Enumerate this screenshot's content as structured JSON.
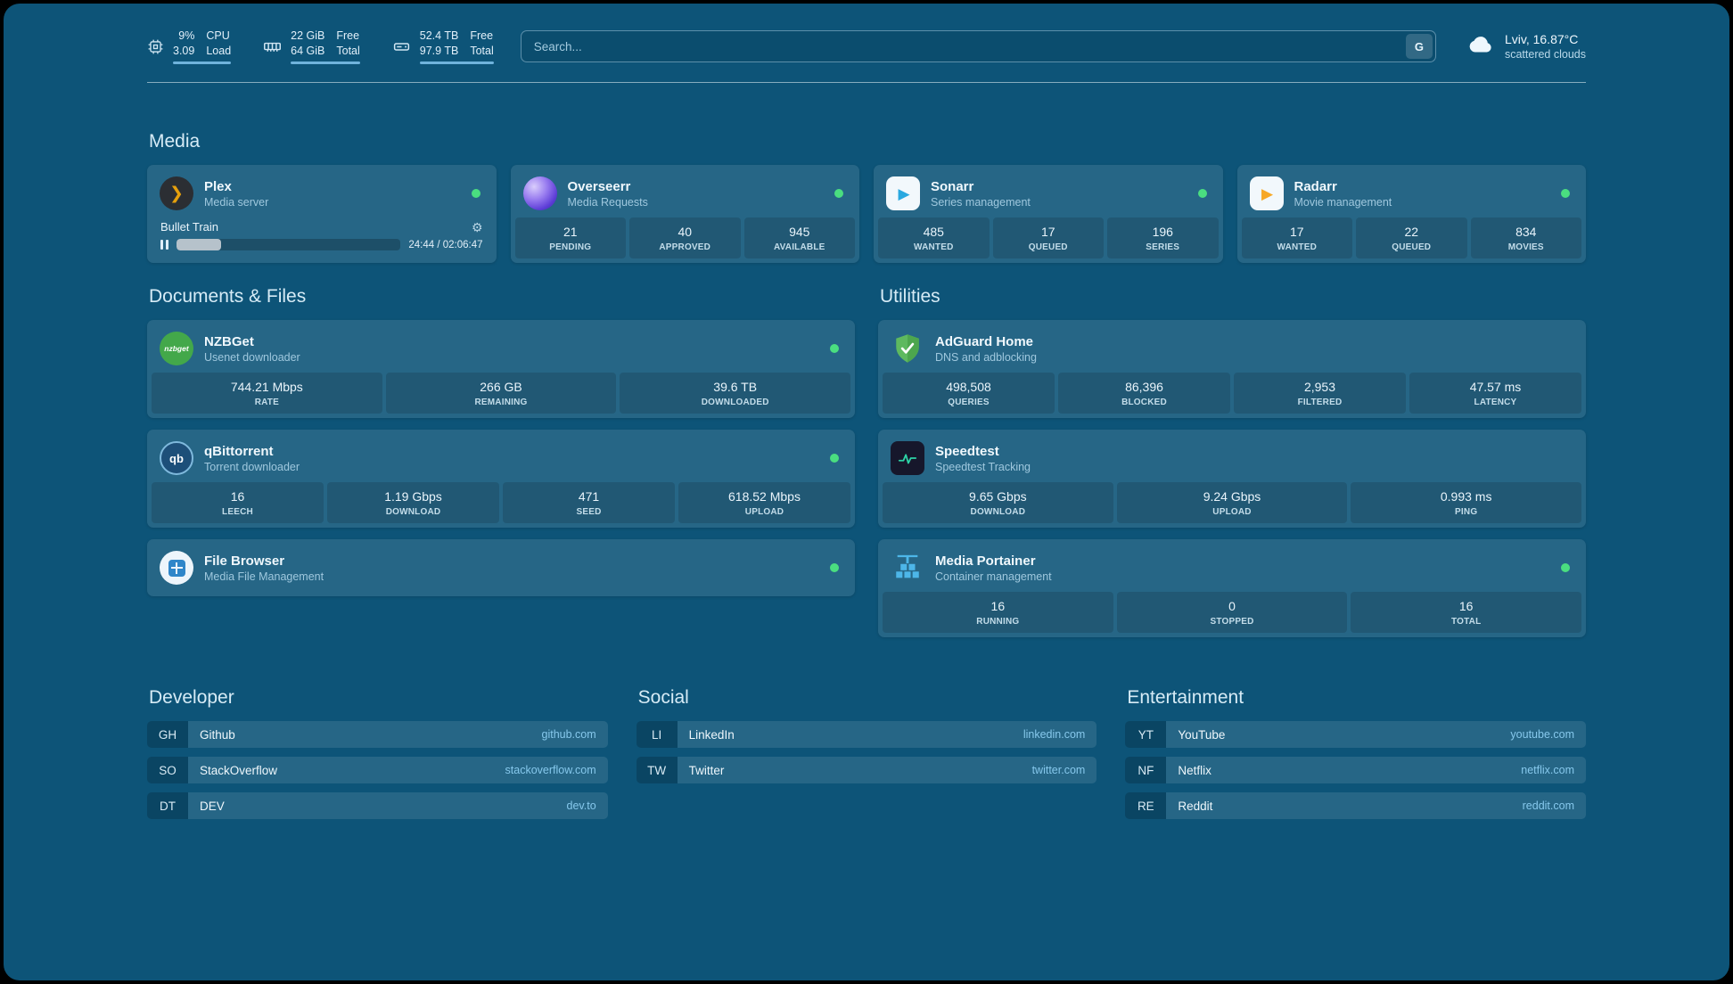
{
  "colors": {
    "background": "#0d5478",
    "status_online": "#4ade80",
    "link": "#86c8ec",
    "accent_bar": "#6fb3dc"
  },
  "icons": {
    "plex_glyph": "❯",
    "play_glyph": "▶",
    "qb_label": "qb",
    "nzbget_label": "nzbget",
    "gear_glyph": "⚙"
  },
  "topbar": {
    "cpu": {
      "v1": "9%",
      "v2": "3.09",
      "l1": "CPU",
      "l2": "Load"
    },
    "mem": {
      "v1": "22 GiB",
      "v2": "64 GiB",
      "l1": "Free",
      "l2": "Total"
    },
    "disk": {
      "v1": "52.4 TB",
      "v2": "97.9 TB",
      "l1": "Free",
      "l2": "Total"
    },
    "search": {
      "placeholder": "Search...",
      "button": "G"
    },
    "weather": {
      "line1": "Lviv, 16.87°C",
      "line2": "scattered clouds"
    }
  },
  "groups": {
    "media": {
      "title": "Media",
      "plex": {
        "name": "Plex",
        "subtitle": "Media server",
        "status": "online",
        "now_playing": "Bullet Train",
        "time": "24:44 / 02:06:47",
        "progress_pct": 20
      },
      "overseerr": {
        "name": "Overseerr",
        "subtitle": "Media Requests",
        "status": "online",
        "stats": [
          {
            "value": "21",
            "label": "PENDING"
          },
          {
            "value": "40",
            "label": "APPROVED"
          },
          {
            "value": "945",
            "label": "AVAILABLE"
          }
        ]
      },
      "sonarr": {
        "name": "Sonarr",
        "subtitle": "Series management",
        "status": "online",
        "stats": [
          {
            "value": "485",
            "label": "WANTED"
          },
          {
            "value": "17",
            "label": "QUEUED"
          },
          {
            "value": "196",
            "label": "SERIES"
          }
        ]
      },
      "radarr": {
        "name": "Radarr",
        "subtitle": "Movie management",
        "status": "online",
        "stats": [
          {
            "value": "17",
            "label": "WANTED"
          },
          {
            "value": "22",
            "label": "QUEUED"
          },
          {
            "value": "834",
            "label": "MOVIES"
          }
        ]
      }
    },
    "documents": {
      "title": "Documents & Files",
      "nzbget": {
        "name": "NZBGet",
        "subtitle": "Usenet downloader",
        "status": "online",
        "stats": [
          {
            "value": "744.21 Mbps",
            "label": "RATE"
          },
          {
            "value": "266 GB",
            "label": "REMAINING"
          },
          {
            "value": "39.6 TB",
            "label": "DOWNLOADED"
          }
        ]
      },
      "qbittorrent": {
        "name": "qBittorrent",
        "subtitle": "Torrent downloader",
        "status": "online",
        "stats": [
          {
            "value": "16",
            "label": "LEECH"
          },
          {
            "value": "1.19 Gbps",
            "label": "DOWNLOAD"
          },
          {
            "value": "471",
            "label": "SEED"
          },
          {
            "value": "618.52 Mbps",
            "label": "UPLOAD"
          }
        ]
      },
      "filebrowser": {
        "name": "File Browser",
        "subtitle": "Media File Management",
        "status": "online"
      }
    },
    "utilities": {
      "title": "Utilities",
      "adguard": {
        "name": "AdGuard Home",
        "subtitle": "DNS and adblocking",
        "stats": [
          {
            "value": "498,508",
            "label": "QUERIES"
          },
          {
            "value": "86,396",
            "label": "BLOCKED"
          },
          {
            "value": "2,953",
            "label": "FILTERED"
          },
          {
            "value": "47.57 ms",
            "label": "LATENCY"
          }
        ]
      },
      "speedtest": {
        "name": "Speedtest",
        "subtitle": "Speedtest Tracking",
        "stats": [
          {
            "value": "9.65 Gbps",
            "label": "DOWNLOAD"
          },
          {
            "value": "9.24 Gbps",
            "label": "UPLOAD"
          },
          {
            "value": "0.993 ms",
            "label": "PING"
          }
        ]
      },
      "portainer": {
        "name": "Media Portainer",
        "subtitle": "Container management",
        "status": "online",
        "stats": [
          {
            "value": "16",
            "label": "RUNNING"
          },
          {
            "value": "0",
            "label": "STOPPED"
          },
          {
            "value": "16",
            "label": "TOTAL"
          }
        ]
      }
    }
  },
  "bookmarks": {
    "developer": {
      "title": "Developer",
      "items": [
        {
          "abbr": "GH",
          "name": "Github",
          "domain": "github.com"
        },
        {
          "abbr": "SO",
          "name": "StackOverflow",
          "domain": "stackoverflow.com"
        },
        {
          "abbr": "DT",
          "name": "DEV",
          "domain": "dev.to"
        }
      ]
    },
    "social": {
      "title": "Social",
      "items": [
        {
          "abbr": "LI",
          "name": "LinkedIn",
          "domain": "linkedin.com"
        },
        {
          "abbr": "TW",
          "name": "Twitter",
          "domain": "twitter.com"
        }
      ]
    },
    "entertainment": {
      "title": "Entertainment",
      "items": [
        {
          "abbr": "YT",
          "name": "YouTube",
          "domain": "youtube.com"
        },
        {
          "abbr": "NF",
          "name": "Netflix",
          "domain": "netflix.com"
        },
        {
          "abbr": "RE",
          "name": "Reddit",
          "domain": "reddit.com"
        }
      ]
    }
  }
}
